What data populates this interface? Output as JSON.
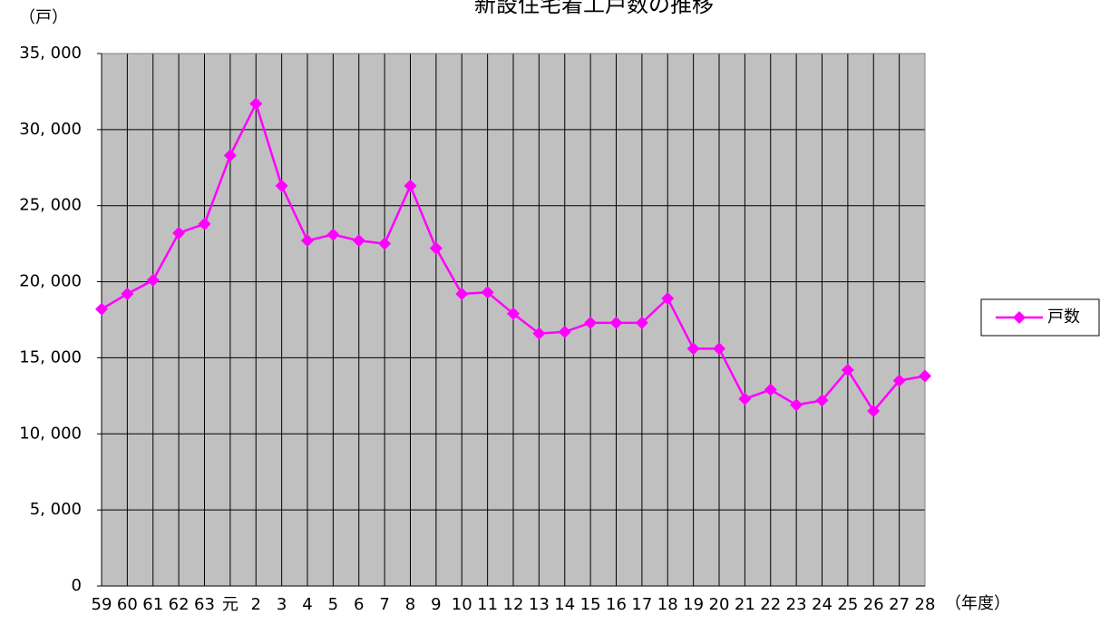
{
  "chart_data": {
    "type": "line",
    "title": "新設住宅着工戸数の推移",
    "y_label": "（戸）",
    "x_label": "（年度）",
    "categories": [
      "59",
      "60",
      "61",
      "62",
      "63",
      "元",
      "2",
      "3",
      "4",
      "5",
      "6",
      "7",
      "8",
      "9",
      "10",
      "11",
      "12",
      "13",
      "14",
      "15",
      "16",
      "17",
      "18",
      "19",
      "20",
      "21",
      "22",
      "23",
      "24",
      "25",
      "26",
      "27",
      "28"
    ],
    "series": [
      {
        "name": "戸数",
        "color": "#ff00ff",
        "values": [
          18200,
          19200,
          20100,
          23200,
          23800,
          28300,
          31700,
          26300,
          22700,
          23100,
          22700,
          22500,
          26300,
          22200,
          19200,
          19300,
          17900,
          16600,
          16700,
          17300,
          17300,
          17300,
          18900,
          15600,
          15600,
          12300,
          12900,
          11900,
          12200,
          14200,
          11500,
          13500,
          13800
        ]
      }
    ],
    "ylim": [
      0,
      35000
    ],
    "yticks": [
      0,
      {
        "value": 5000,
        "label": "5, 000"
      },
      {
        "value": 10000,
        "label": "10, 000"
      },
      {
        "value": 15000,
        "label": "15, 000"
      },
      {
        "value": 20000,
        "label": "20, 000"
      },
      {
        "value": 25000,
        "label": "25, 000"
      },
      {
        "value": 30000,
        "label": "30, 000"
      },
      {
        "value": 35000,
        "label": "35, 000"
      }
    ],
    "grid": true,
    "legend": "right"
  }
}
